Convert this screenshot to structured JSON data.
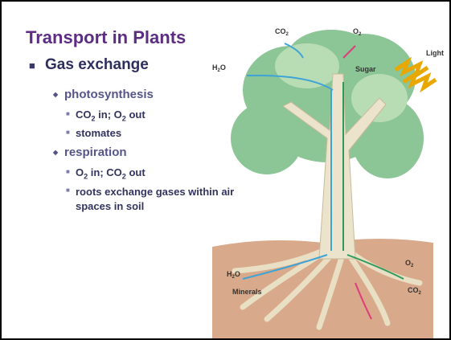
{
  "title": "Transport in Plants",
  "bullets": [
    {
      "text": "Gas exchange",
      "items": [
        {
          "text": "photosynthesis",
          "items": [
            {
              "parts": [
                "CO",
                "2",
                " in; O",
                "2",
                " out"
              ]
            },
            {
              "parts": [
                "stomates"
              ]
            }
          ]
        },
        {
          "text": "respiration",
          "items": [
            {
              "parts": [
                "O",
                "2",
                " in; CO",
                "2",
                " out"
              ]
            },
            {
              "parts": [
                "roots exchange gases within air spaces in soil"
              ]
            }
          ]
        }
      ]
    }
  ],
  "diagram": {
    "labels": [
      {
        "parts": [
          "CO",
          "2"
        ]
      },
      {
        "parts": [
          "O",
          "2"
        ]
      },
      {
        "parts": [
          "Light"
        ]
      },
      {
        "parts": [
          "H",
          "2",
          "O"
        ]
      },
      {
        "parts": [
          "Sugar"
        ]
      },
      {
        "parts": [
          "H",
          "2",
          "O"
        ]
      },
      {
        "parts": [
          "Minerals"
        ]
      },
      {
        "parts": [
          "O",
          "2"
        ]
      },
      {
        "parts": [
          "CO",
          "2"
        ]
      }
    ]
  }
}
